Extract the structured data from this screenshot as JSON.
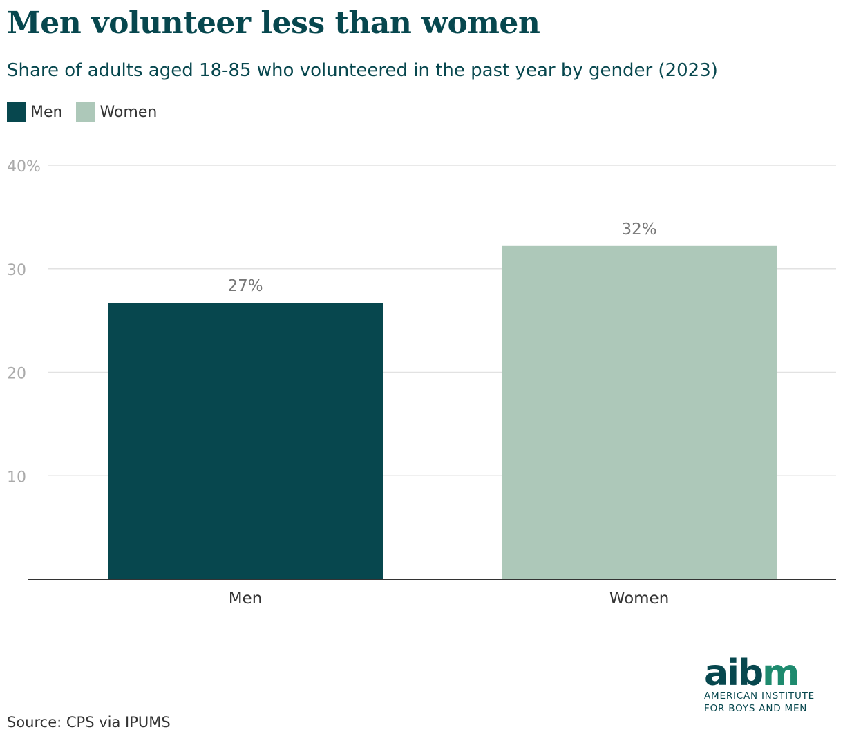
{
  "header": {
    "title": "Men volunteer less than women",
    "subtitle": "Share of adults aged 18-85 who volunteered in the past year by gender (2023)"
  },
  "legend": [
    {
      "label": "Men",
      "color": "#07474e"
    },
    {
      "label": "Women",
      "color": "#adc8b9"
    }
  ],
  "chart_data": {
    "type": "bar",
    "categories": [
      "Men",
      "Women"
    ],
    "values": [
      26.7,
      32.2
    ],
    "data_labels": [
      "27%",
      "32%"
    ],
    "colors": [
      "#07474e",
      "#adc8b9"
    ],
    "ylim": [
      0,
      40
    ],
    "yticks": [
      {
        "value": 40,
        "label": "40%"
      },
      {
        "value": 30,
        "label": "30"
      },
      {
        "value": 20,
        "label": "20"
      },
      {
        "value": 10,
        "label": "10"
      }
    ],
    "grid": true,
    "legend_position": "top-left",
    "title": "Men volunteer less than women",
    "xlabel": "",
    "ylabel": ""
  },
  "footer": {
    "source": "Source: CPS via IPUMS"
  },
  "logo": {
    "word_prefix": "aib",
    "word_accent": "m",
    "line1": "AMERICAN INSTITUTE",
    "line2": "FOR BOYS AND MEN"
  }
}
